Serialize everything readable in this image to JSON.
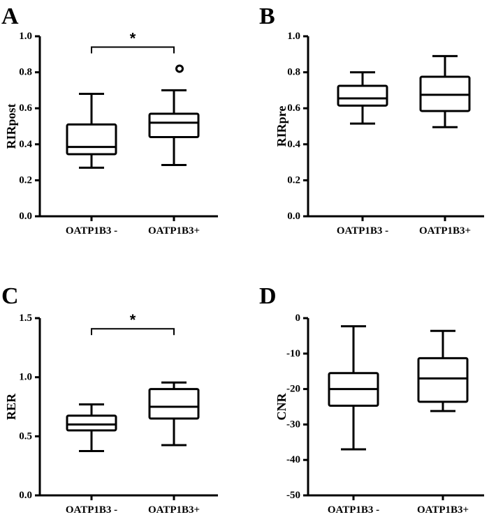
{
  "chart_data": [
    {
      "type": "box",
      "panel_label": "A",
      "ylabel": "RIRpost",
      "ylim": [
        0.0,
        1.0
      ],
      "yticks": [
        0.0,
        0.2,
        0.4,
        0.6,
        0.8,
        1.0
      ],
      "ytick_labels": [
        "0.0",
        "0.2",
        "0.4",
        "0.6",
        "0.8",
        "1.0"
      ],
      "categories": [
        "OATP1B3 -",
        "OATP1B3+"
      ],
      "boxes": [
        {
          "min": 0.27,
          "q1": 0.345,
          "median": 0.385,
          "q3": 0.51,
          "max": 0.68,
          "outliers": []
        },
        {
          "min": 0.285,
          "q1": 0.44,
          "median": 0.52,
          "q3": 0.57,
          "max": 0.7,
          "outliers": [
            0.82
          ]
        }
      ],
      "significance": {
        "label": "*",
        "between": [
          0,
          1
        ],
        "y": 0.94
      }
    },
    {
      "type": "box",
      "panel_label": "B",
      "ylabel": "RIRpre",
      "ylim": [
        0.0,
        1.0
      ],
      "yticks": [
        0.0,
        0.2,
        0.4,
        0.6,
        0.8,
        1.0
      ],
      "ytick_labels": [
        "0.0",
        "0.2",
        "0.4",
        "0.6",
        "0.8",
        "1.0"
      ],
      "categories": [
        "OATP1B3 -",
        "OATP1B3+"
      ],
      "boxes": [
        {
          "min": 0.515,
          "q1": 0.615,
          "median": 0.655,
          "q3": 0.725,
          "max": 0.8,
          "outliers": []
        },
        {
          "min": 0.495,
          "q1": 0.585,
          "median": 0.675,
          "q3": 0.775,
          "max": 0.89,
          "outliers": []
        }
      ]
    },
    {
      "type": "box",
      "panel_label": "C",
      "ylabel": "RER",
      "ylim": [
        0.0,
        1.5
      ],
      "yticks": [
        0.0,
        0.5,
        1.0,
        1.5
      ],
      "ytick_labels": [
        "0.0",
        "0.5",
        "1.0",
        "1.5"
      ],
      "categories": [
        "OATP1B3 -",
        "OATP1B3+"
      ],
      "boxes": [
        {
          "min": 0.375,
          "q1": 0.55,
          "median": 0.6,
          "q3": 0.675,
          "max": 0.77,
          "outliers": []
        },
        {
          "min": 0.425,
          "q1": 0.65,
          "median": 0.75,
          "q3": 0.9,
          "max": 0.955,
          "outliers": []
        }
      ],
      "significance": {
        "label": "*",
        "between": [
          0,
          1
        ],
        "y": 1.41
      }
    },
    {
      "type": "box",
      "panel_label": "D",
      "ylabel": "CNR",
      "ylim": [
        -50,
        0
      ],
      "yticks": [
        -50,
        -40,
        -30,
        -20,
        -10,
        0
      ],
      "ytick_labels": [
        "-50",
        "-40",
        "-30",
        "-20",
        "-10",
        "0"
      ],
      "categories": [
        "OATP1B3 -",
        "OATP1B3+"
      ],
      "boxes": [
        {
          "min": -37,
          "q1": -24.7,
          "median": -20,
          "q3": -15.5,
          "max": -2.3,
          "outliers": []
        },
        {
          "min": -26.2,
          "q1": -23.6,
          "median": -17,
          "q3": -11.3,
          "max": -3.6,
          "outliers": []
        }
      ]
    }
  ]
}
